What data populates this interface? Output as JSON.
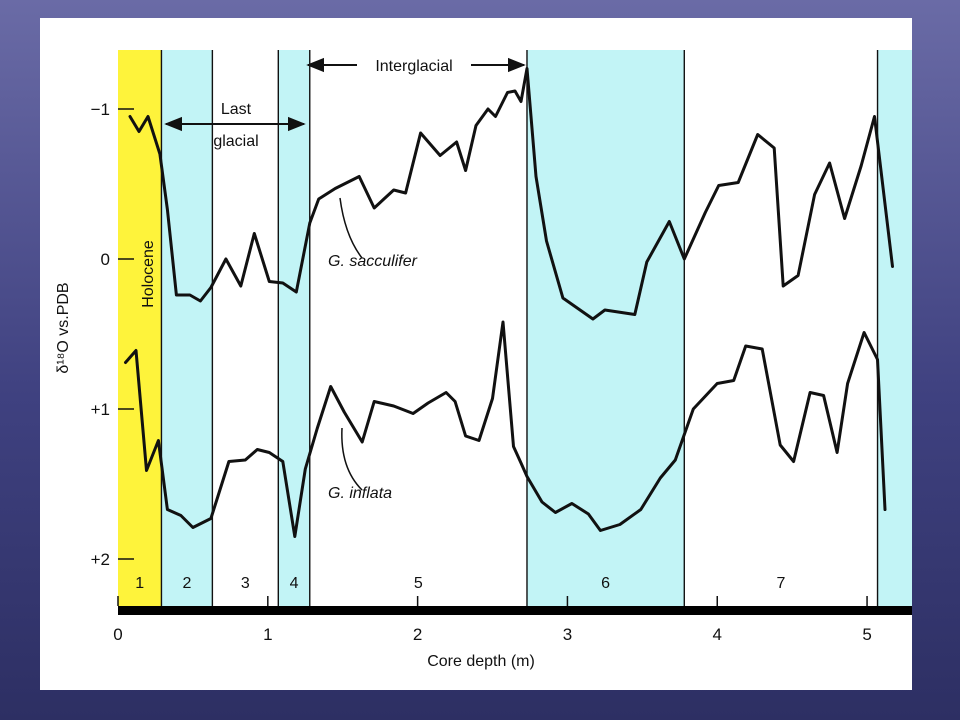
{
  "chart_data": {
    "type": "line",
    "xlabel": "Core depth (m)",
    "ylabel": "δ¹⁸O vs.PDB",
    "xlim": [
      0,
      5.3
    ],
    "ylim": [
      -1.3,
      2.3
    ],
    "y_inverted": true,
    "x_ticks": [
      0,
      1,
      2,
      3,
      4,
      5
    ],
    "x_tick_labels": [
      "0",
      "1",
      "2",
      "3",
      "4",
      "5"
    ],
    "y_ticks": [
      -1,
      0,
      1,
      2
    ],
    "y_tick_labels": [
      "−1",
      "0",
      "+1",
      "+2"
    ],
    "colors": {
      "holocene": "#fef33b",
      "glacial": "#c2f4f6",
      "line": "#111111",
      "baseline": "#000000"
    },
    "zones": [
      {
        "label": "1",
        "start": 0.0,
        "end": 0.29,
        "shade": "holocene"
      },
      {
        "label": "2",
        "start": 0.29,
        "end": 0.63,
        "shade": "glacial"
      },
      {
        "label": "3",
        "start": 0.63,
        "end": 1.07,
        "shade": "none"
      },
      {
        "label": "4",
        "start": 1.07,
        "end": 1.28,
        "shade": "glacial"
      },
      {
        "label": "5",
        "start": 1.28,
        "end": 2.73,
        "shade": "none"
      },
      {
        "label": "6",
        "start": 2.73,
        "end": 3.78,
        "shade": "glacial"
      },
      {
        "label": "7",
        "start": 3.78,
        "end": 5.07,
        "shade": "none"
      },
      {
        "label": "",
        "start": 5.07,
        "end": 5.3,
        "shade": "glacial"
      }
    ],
    "series": [
      {
        "name": "G. sacculifer",
        "x": [
          0.08,
          0.14,
          0.2,
          0.28,
          0.33,
          0.39,
          0.48,
          0.55,
          0.62,
          0.72,
          0.82,
          0.91,
          1.01,
          1.1,
          1.19,
          1.28,
          1.34,
          1.45,
          1.61,
          1.71,
          1.84,
          1.92,
          2.02,
          2.15,
          2.26,
          2.32,
          2.39,
          2.47,
          2.52,
          2.6,
          2.65,
          2.69,
          2.73,
          2.79,
          2.86,
          2.97,
          3.17,
          3.25,
          3.45,
          3.53,
          3.68,
          3.78,
          3.92,
          4.01,
          4.14,
          4.27,
          4.38,
          4.44,
          4.54,
          4.65,
          4.75,
          4.85,
          4.96,
          5.05,
          5.17
        ],
        "y": [
          -0.95,
          -0.85,
          -0.95,
          -0.7,
          -0.33,
          0.24,
          0.24,
          0.28,
          0.19,
          0.0,
          0.18,
          -0.17,
          0.15,
          0.16,
          0.22,
          -0.24,
          -0.4,
          -0.47,
          -0.55,
          -0.34,
          -0.46,
          -0.44,
          -0.84,
          -0.69,
          -0.78,
          -0.59,
          -0.89,
          -1.0,
          -0.95,
          -1.11,
          -1.12,
          -1.05,
          -1.27,
          -0.55,
          -0.12,
          0.26,
          0.4,
          0.34,
          0.37,
          0.02,
          -0.25,
          0.0,
          -0.31,
          -0.49,
          -0.51,
          -0.83,
          -0.74,
          0.18,
          0.11,
          -0.43,
          -0.64,
          -0.27,
          -0.62,
          -0.95,
          0.05
        ]
      },
      {
        "name": "G. inflata",
        "x": [
          0.05,
          0.12,
          0.19,
          0.27,
          0.33,
          0.42,
          0.5,
          0.62,
          0.68,
          0.74,
          0.85,
          0.93,
          1.01,
          1.1,
          1.18,
          1.25,
          1.33,
          1.42,
          1.51,
          1.63,
          1.71,
          1.84,
          1.97,
          2.07,
          2.19,
          2.25,
          2.32,
          2.41,
          2.5,
          2.57,
          2.64,
          2.69,
          2.73,
          2.83,
          2.92,
          3.03,
          3.14,
          3.22,
          3.35,
          3.49,
          3.62,
          3.72,
          3.84,
          4.0,
          4.11,
          4.19,
          4.3,
          4.42,
          4.51,
          4.62,
          4.71,
          4.8,
          4.87,
          4.98,
          5.07,
          5.12
        ],
        "y": [
          0.69,
          0.61,
          1.41,
          1.21,
          1.67,
          1.71,
          1.79,
          1.73,
          1.54,
          1.35,
          1.34,
          1.27,
          1.29,
          1.35,
          1.85,
          1.4,
          1.13,
          0.85,
          1.02,
          1.22,
          0.95,
          0.98,
          1.03,
          0.96,
          0.89,
          0.95,
          1.18,
          1.21,
          0.93,
          0.42,
          1.25,
          1.36,
          1.45,
          1.62,
          1.69,
          1.63,
          1.7,
          1.81,
          1.77,
          1.67,
          1.46,
          1.34,
          1.0,
          0.83,
          0.81,
          0.58,
          0.6,
          1.24,
          1.35,
          0.89,
          0.91,
          1.29,
          0.83,
          0.49,
          0.67,
          1.67
        ]
      }
    ],
    "annotations": {
      "holocene": "Holocene",
      "last_glacial_line1": "Last",
      "last_glacial_line2": "glacial",
      "interglacial": "Interglacial"
    }
  }
}
